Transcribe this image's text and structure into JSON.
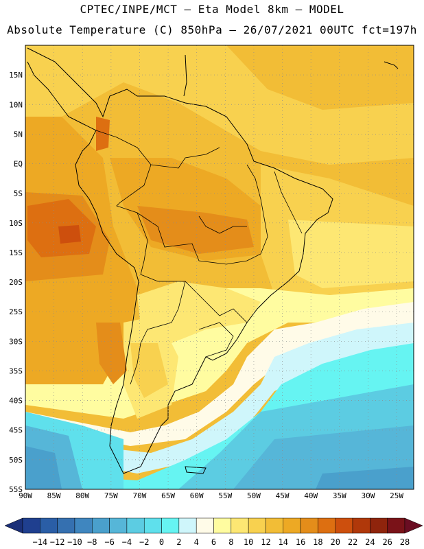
{
  "header": {
    "line1": "CPTEC/INPE/MCT –  Eta Model 8km – MODEL",
    "line2": "Absolute Temperature (C) 850hPa – 26/07/2021 00UTC fct=197h"
  },
  "map": {
    "lat_labels": [
      "15N",
      "10N",
      "5N",
      "EQ",
      "5S",
      "10S",
      "15S",
      "20S",
      "25S",
      "30S",
      "35S",
      "40S",
      "45S",
      "50S",
      "55S"
    ],
    "lon_labels": [
      "90W",
      "85W",
      "80W",
      "75W",
      "70W",
      "65W",
      "60W",
      "55W",
      "50W",
      "45W",
      "40W",
      "35W",
      "30W",
      "25W"
    ],
    "lat_range": [
      -55,
      20
    ],
    "lon_range": [
      -90,
      -22
    ]
  },
  "colorbar": {
    "labels": [
      "-14",
      "-12",
      "-10",
      "-8",
      "-6",
      "-4",
      "-2",
      "0",
      "2",
      "4",
      "6",
      "8",
      "10",
      "12",
      "14",
      "16",
      "18",
      "20",
      "22",
      "24",
      "26",
      "28"
    ],
    "colors": [
      "#1f3f8f",
      "#2a5ea6",
      "#3570b0",
      "#3f86bf",
      "#4aa0cc",
      "#56b6d8",
      "#5ccce2",
      "#5fe0ec",
      "#66f4f2",
      "#cff6fb",
      "#fffbe8",
      "#fffca0",
      "#fde773",
      "#f8d14f",
      "#f2bd36",
      "#eda924",
      "#e48d1a",
      "#dd6f11",
      "#cd4f0d",
      "#b0380a",
      "#8f240c",
      "#7a1218"
    ],
    "arrow_low_color": "#1a2f78",
    "arrow_high_color": "#6a0d22"
  }
}
